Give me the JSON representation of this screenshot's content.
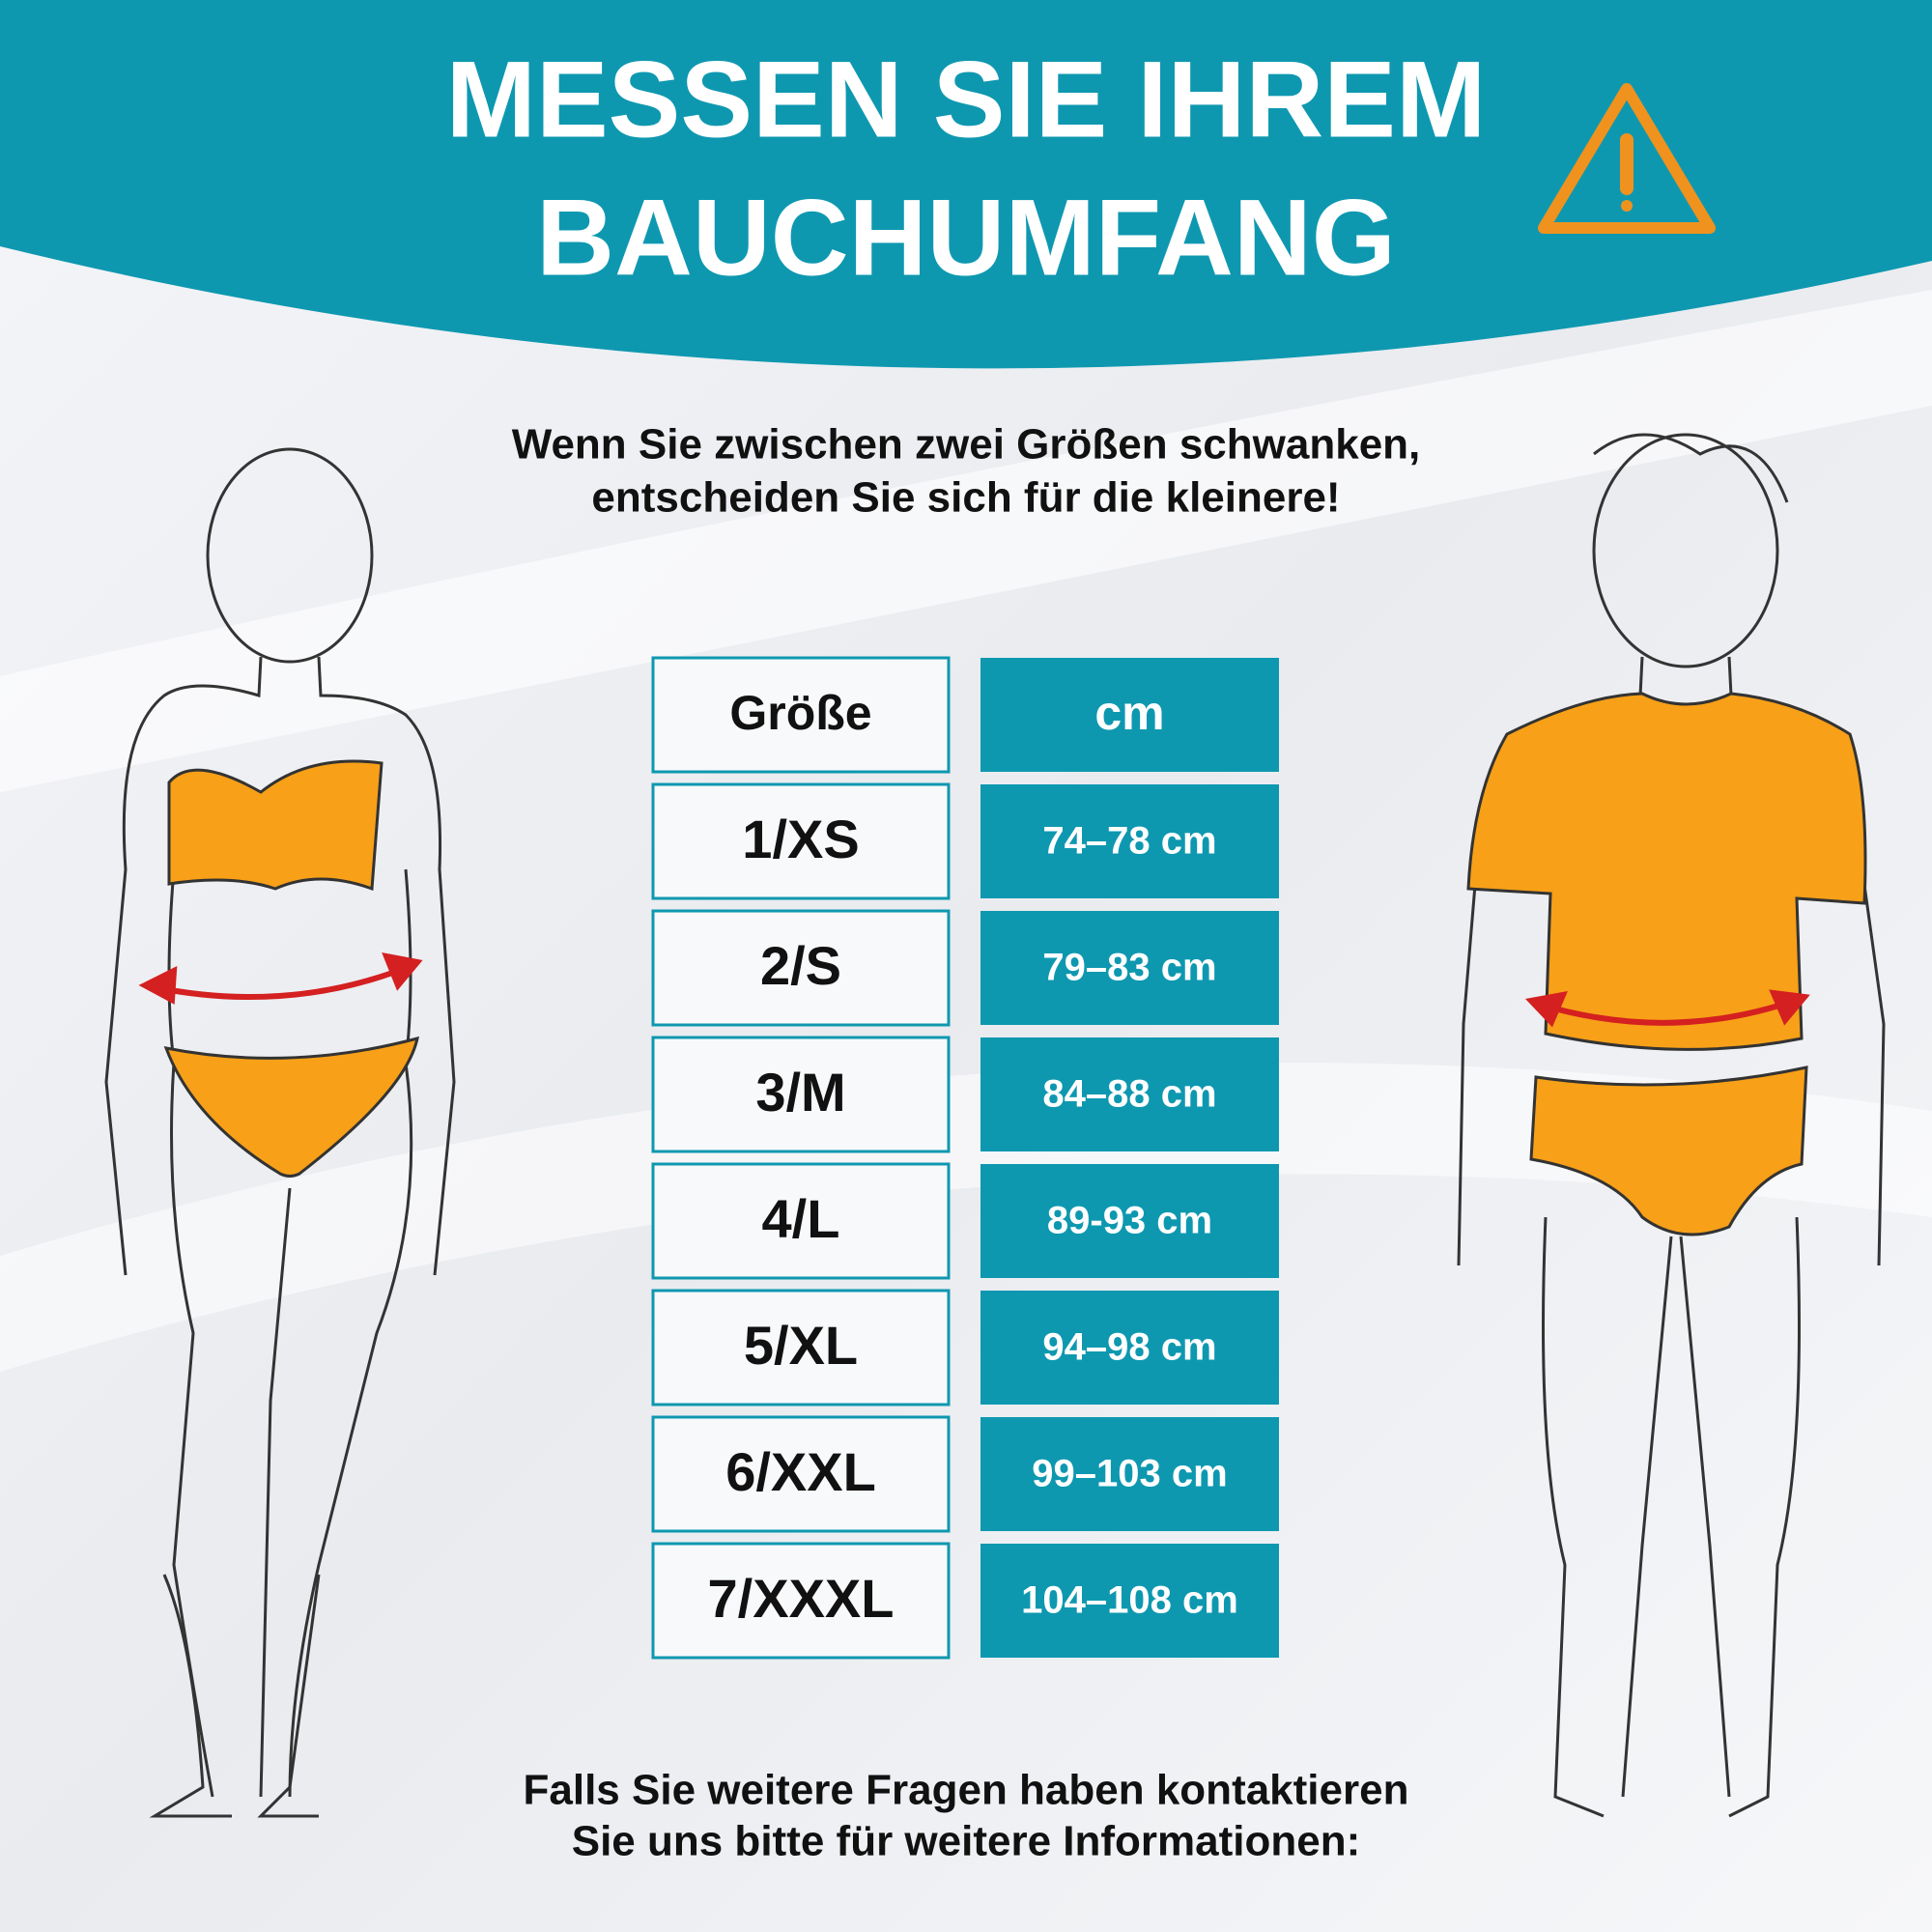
{
  "header": {
    "title": [
      "MESSEN SIE IHREM",
      "BAUCHUMFANG"
    ]
  },
  "subtitle": [
    "Wenn Sie zwischen zwei Größen schwanken,",
    "entscheiden Sie sich für die kleinere!"
  ],
  "table": {
    "columns": [
      "Größe",
      "cm"
    ],
    "rows": [
      [
        "1/XS",
        "74–78 cm"
      ],
      [
        "2/S",
        "79–83 cm"
      ],
      [
        "3/M",
        "84–88 cm"
      ],
      [
        "4/L",
        "89-93 cm"
      ],
      [
        "5/XL",
        "94–98 cm"
      ],
      [
        "6/XXL",
        "99–103 cm"
      ],
      [
        "7/XXXL",
        "104–108 cm"
      ]
    ]
  },
  "footer": [
    "Falls Sie weitere Fragen haben kontaktieren",
    "Sie uns bitte für weitere Informationen:"
  ]
}
